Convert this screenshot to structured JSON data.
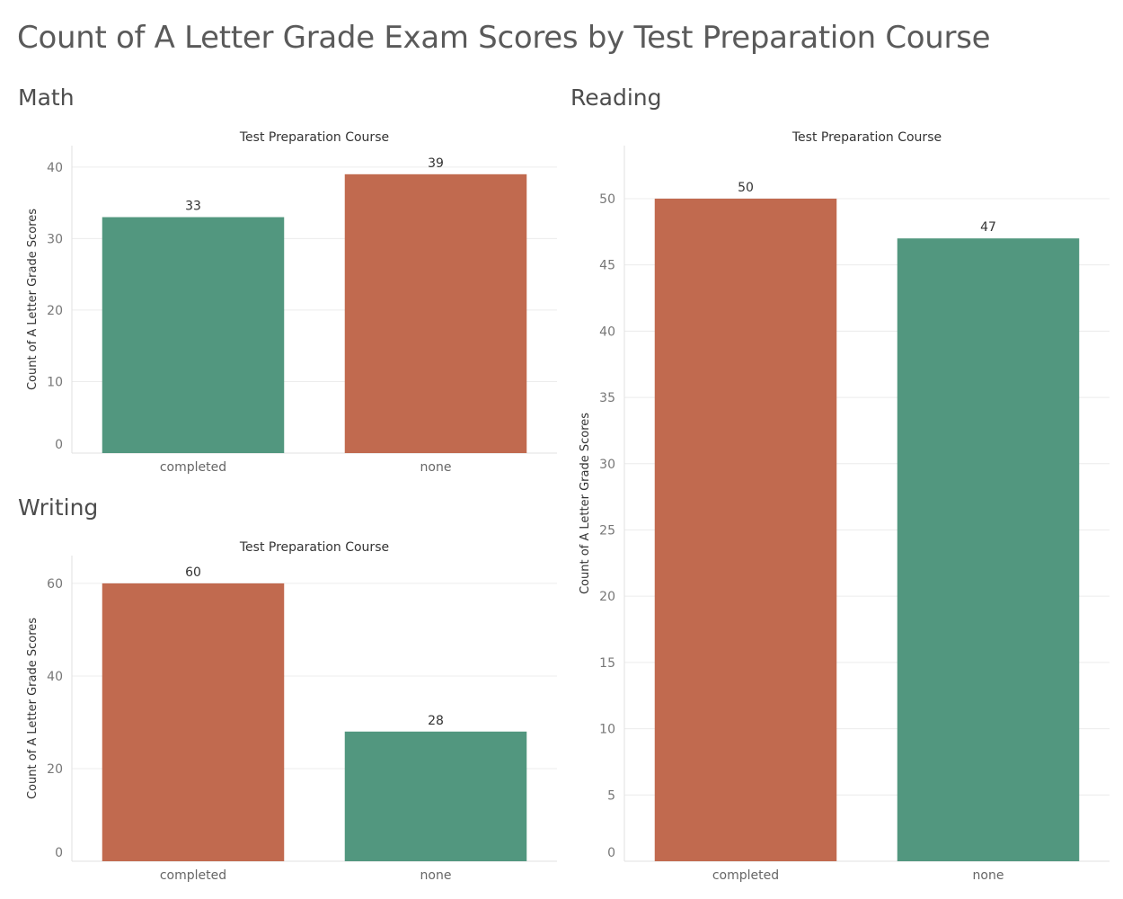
{
  "title": "Count of A Letter Grade Exam Scores by Test Preparation Course",
  "colors": {
    "completed_green": "#52977f",
    "none_orange": "#c16a4f"
  },
  "chart_data": [
    {
      "id": "math",
      "type": "bar",
      "panel_title": "Math",
      "header": "Test Preparation Course",
      "ylabel": "Count of A Letter Grade Scores",
      "categories": [
        "completed",
        "none"
      ],
      "values": [
        33,
        39
      ],
      "bar_colors": [
        "#52977f",
        "#c16a4f"
      ],
      "ylim": [
        0,
        43
      ],
      "yticks": [
        0,
        10,
        20,
        30,
        40
      ],
      "grid": true
    },
    {
      "id": "writing",
      "type": "bar",
      "panel_title": "Writing",
      "header": "Test Preparation Course",
      "ylabel": "Count of A Letter Grade Scores",
      "categories": [
        "completed",
        "none"
      ],
      "values": [
        60,
        28
      ],
      "bar_colors": [
        "#c16a4f",
        "#52977f"
      ],
      "ylim": [
        0,
        66
      ],
      "yticks": [
        0,
        20,
        40,
        60
      ],
      "grid": true
    },
    {
      "id": "reading",
      "type": "bar",
      "panel_title": "Reading",
      "header": "Test Preparation Course",
      "ylabel": "Count of A Letter Grade Scores",
      "categories": [
        "completed",
        "none"
      ],
      "values": [
        50,
        47
      ],
      "bar_colors": [
        "#c16a4f",
        "#52977f"
      ],
      "ylim": [
        0,
        54
      ],
      "yticks": [
        0,
        5,
        10,
        15,
        20,
        25,
        30,
        35,
        40,
        45,
        50
      ],
      "grid": true
    }
  ]
}
